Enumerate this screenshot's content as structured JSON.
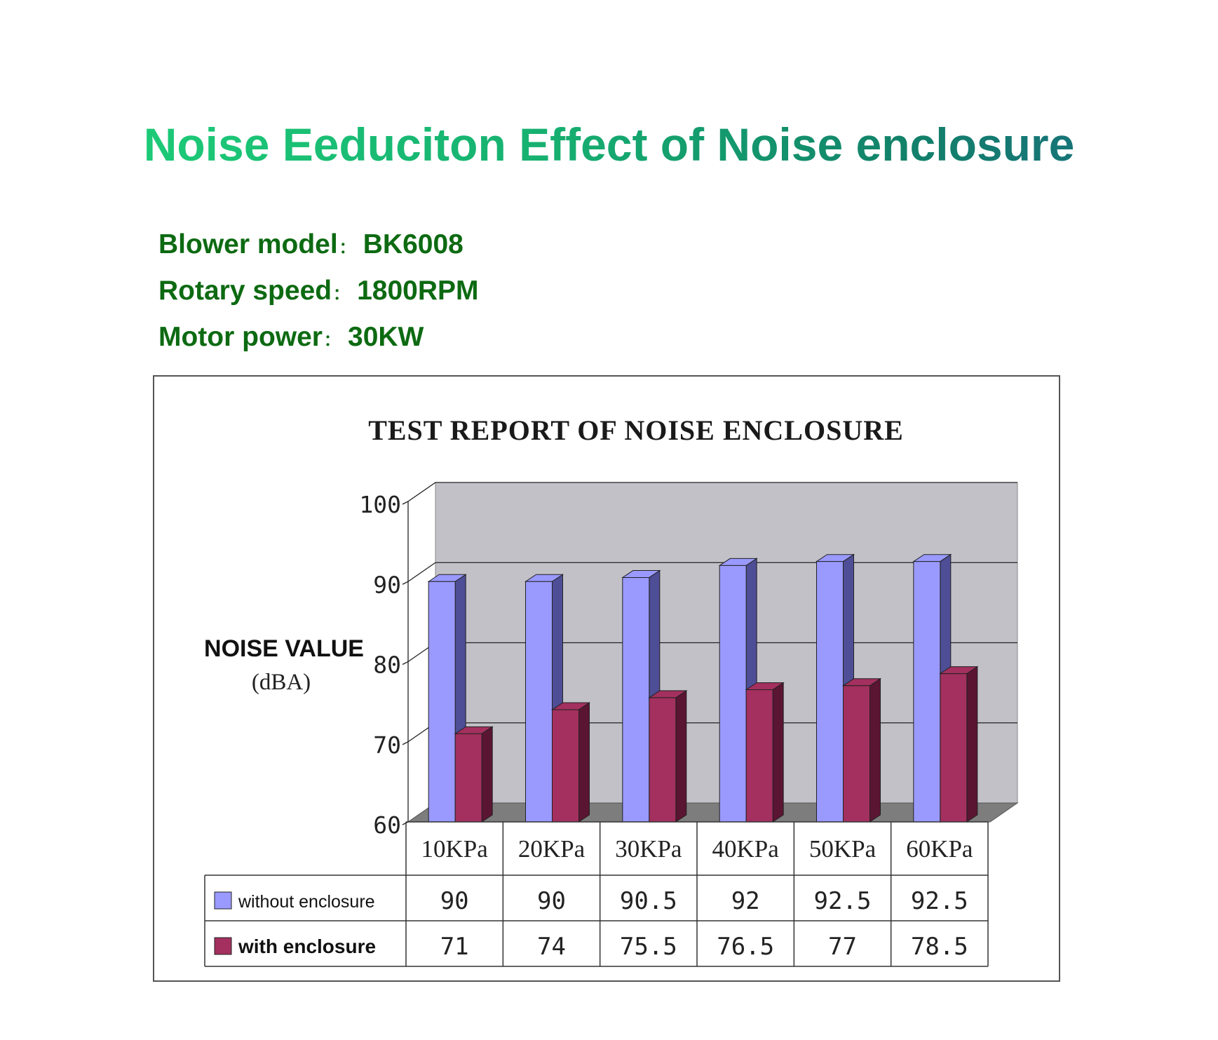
{
  "page": {
    "title": "Noise Eeduciton Effect of Noise enclosure",
    "specs": [
      {
        "label": "Blower model",
        "sep": "：",
        "value": "BK6008"
      },
      {
        "label": "Rotary speed",
        "sep": "：",
        "value": "1800RPM"
      },
      {
        "label": "Motor power",
        "sep": "：",
        "value": "30KW"
      }
    ]
  },
  "colors": {
    "title_gradient": [
      "#1fd37a",
      "#1b6a84"
    ],
    "spec_text": "#0d6a12",
    "wall": "#c2c1c8",
    "floor": "#7d7d7d",
    "series_without": "#9a9afe",
    "series_without_side": "#4e4e96",
    "series_with": "#a3305e",
    "series_with_side": "#5a1533"
  },
  "chart_data": {
    "type": "bar",
    "title": "TEST REPORT OF NOISE ENCLOSURE",
    "ylabel": "NOISE VALUE",
    "ylabel_unit": "(dBA)",
    "ylim": [
      60,
      100
    ],
    "yticks": [
      "100",
      "90",
      "80",
      "70",
      "60"
    ],
    "grid": true,
    "style": "3d-clustered-column",
    "legend_placement": "data-table-left",
    "categories": [
      "10KPa",
      "20KPa",
      "30KPa",
      "40KPa",
      "50KPa",
      "60KPa"
    ],
    "series": [
      {
        "name": "without enclosure",
        "values": [
          90,
          90,
          90.5,
          92,
          92.5,
          92.5
        ],
        "labels": [
          "90",
          "90",
          "90.5",
          "92",
          "92.5",
          "92.5"
        ]
      },
      {
        "name": "with enclosure",
        "values": [
          71,
          74,
          75.5,
          76.5,
          77,
          78.5
        ],
        "labels": [
          "71",
          "74",
          "75.5",
          "76.5",
          "77",
          "78.5"
        ]
      }
    ]
  }
}
